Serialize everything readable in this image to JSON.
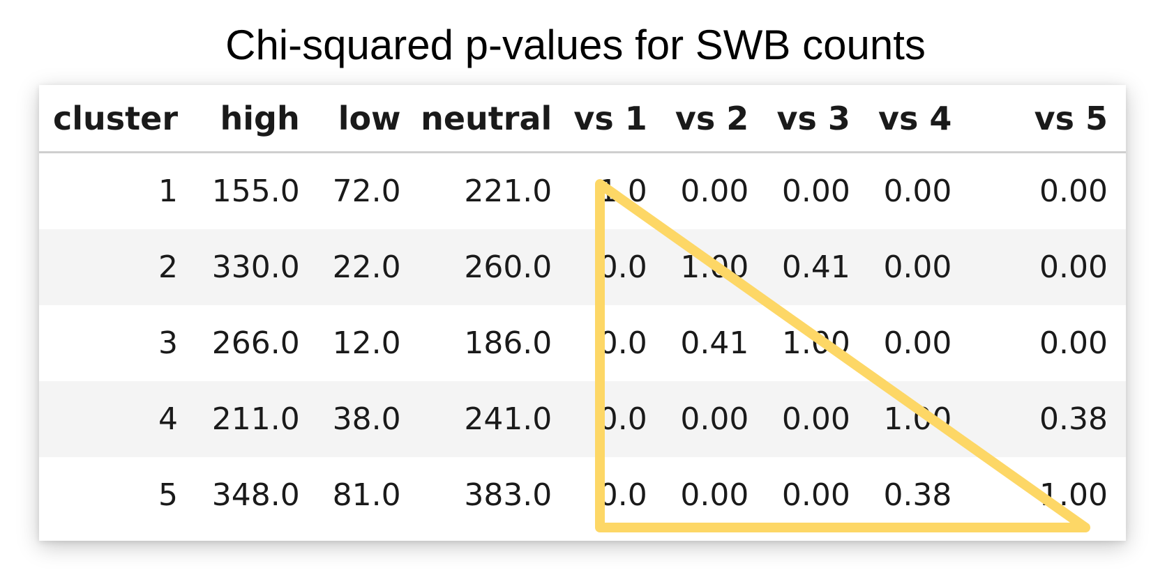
{
  "title": "Chi-squared p-values for SWB counts",
  "table": {
    "columns": [
      "cluster",
      "high",
      "low",
      "neutral",
      "vs 1",
      "vs 2",
      "vs 3",
      "vs 4",
      "vs 5"
    ],
    "rows": [
      [
        "1",
        "155.0",
        "72.0",
        "221.0",
        "1.0",
        "0.00",
        "0.00",
        "0.00",
        "0.00"
      ],
      [
        "2",
        "330.0",
        "22.0",
        "260.0",
        "0.0",
        "1.00",
        "0.41",
        "0.00",
        "0.00"
      ],
      [
        "3",
        "266.0",
        "12.0",
        "186.0",
        "0.0",
        "0.41",
        "1.00",
        "0.00",
        "0.00"
      ],
      [
        "4",
        "211.0",
        "38.0",
        "241.0",
        "0.0",
        "0.00",
        "0.00",
        "1.00",
        "0.38"
      ],
      [
        "5",
        "348.0",
        "81.0",
        "383.0",
        "0.0",
        "0.00",
        "0.00",
        "0.38",
        "1.00"
      ]
    ]
  },
  "highlight": {
    "shape": "triangle",
    "color": "#FDD766"
  }
}
